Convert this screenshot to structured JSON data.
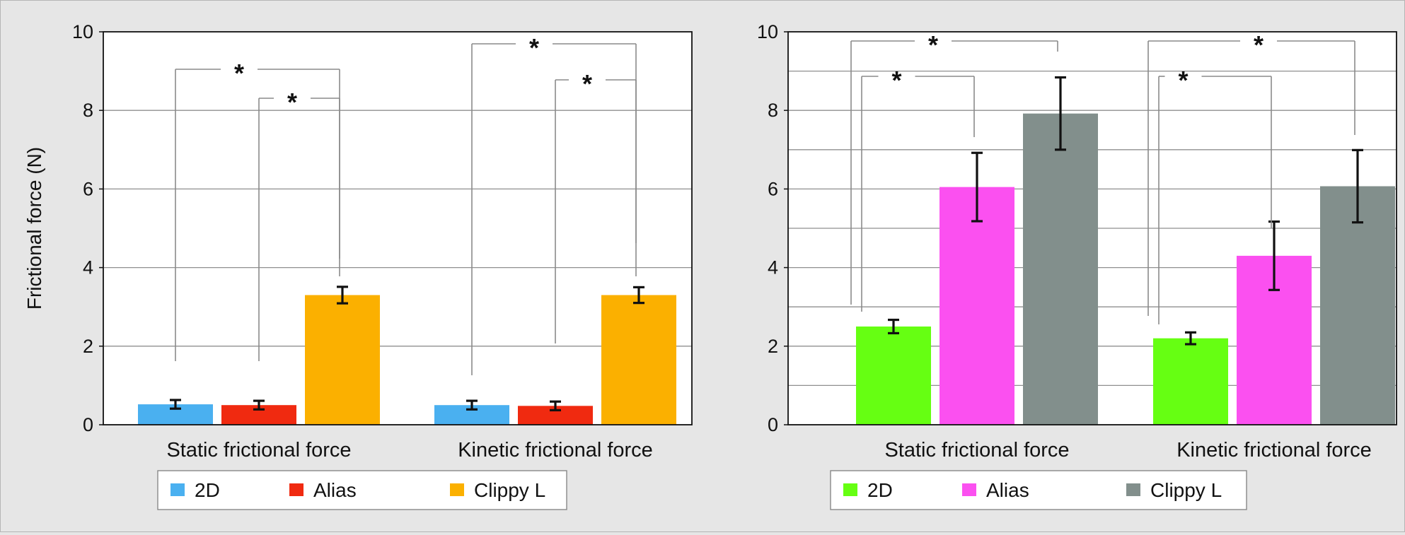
{
  "figure": {
    "background": "#e6e6e6"
  },
  "chart_data": [
    {
      "type": "bar",
      "title": "",
      "xlabel": "",
      "ylabel": "Frictional force (N)",
      "ylim": [
        0,
        10
      ],
      "yticks": [
        0,
        2,
        4,
        6,
        8,
        10
      ],
      "grid": true,
      "legend_position": "bottom",
      "categories": [
        "Static frictional force",
        "Kinetic frictional force"
      ],
      "series": [
        {
          "name": "2D",
          "color": "#4ab0f0",
          "values": [
            0.52,
            0.5
          ],
          "errors": [
            0.11,
            0.11
          ]
        },
        {
          "name": "Alias",
          "color": "#f02a10",
          "values": [
            0.5,
            0.48
          ],
          "errors": [
            0.11,
            0.11
          ]
        },
        {
          "name": "Clippy L",
          "color": "#fbb000",
          "values": [
            3.3,
            3.3
          ],
          "errors": [
            0.21,
            0.2
          ]
        }
      ],
      "significance": [
        {
          "category": 0,
          "from_series": 0,
          "to_series": 2,
          "label": "*"
        },
        {
          "category": 0,
          "from_series": 1,
          "to_series": 2,
          "label": "*"
        },
        {
          "category": 1,
          "from_series": 0,
          "to_series": 2,
          "label": "*"
        },
        {
          "category": 1,
          "from_series": 1,
          "to_series": 2,
          "label": "*"
        }
      ]
    },
    {
      "type": "bar",
      "title": "",
      "xlabel": "",
      "ylabel": "",
      "ylim": [
        0,
        10
      ],
      "yticks": [
        0,
        2,
        4,
        6,
        8,
        10
      ],
      "grid": true,
      "legend_position": "bottom",
      "categories": [
        "Static frictional force",
        "Kinetic frictional force"
      ],
      "series": [
        {
          "name": "2D",
          "color": "#66ff12",
          "values": [
            2.5,
            2.2
          ],
          "errors": [
            0.17,
            0.15
          ]
        },
        {
          "name": "Alias",
          "color": "#fb50f0",
          "values": [
            6.05,
            4.3
          ],
          "errors": [
            0.87,
            0.87
          ]
        },
        {
          "name": "Clippy L",
          "color": "#828f8c",
          "values": [
            7.92,
            6.07
          ],
          "errors": [
            0.92,
            0.92
          ]
        }
      ],
      "significance": [
        {
          "category": 0,
          "from_series": 0,
          "to_series": 2,
          "label": "*"
        },
        {
          "category": 0,
          "from_series": 0,
          "to_series": 1,
          "label": "*"
        },
        {
          "category": 1,
          "from_series": 0,
          "to_series": 2,
          "label": "*"
        },
        {
          "category": 1,
          "from_series": 0,
          "to_series": 1,
          "label": "*"
        }
      ]
    }
  ]
}
